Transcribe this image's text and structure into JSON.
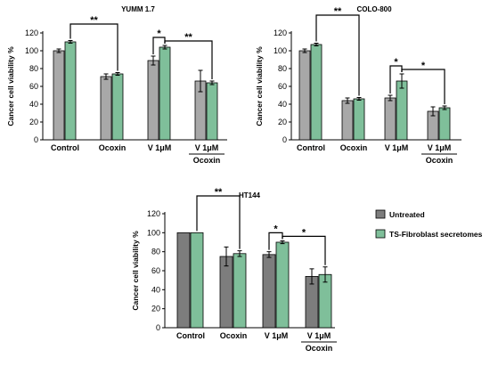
{
  "colors": {
    "untreated": "#a8a8a8",
    "untreated_dark": "#7d7d7d",
    "ts_fibroblast": "#7fbf9a",
    "axis": "#000000"
  },
  "legend": {
    "items": [
      {
        "label": "Untreated",
        "color_key": "untreated_dark"
      },
      {
        "label": "TS-Fibroblast secretomes",
        "color_key": "ts_fibroblast"
      }
    ]
  },
  "chart_data": [
    {
      "type": "bar",
      "title": "YUMM 1.7",
      "ylabel": "Cancer cell viability %",
      "ylim": [
        0,
        120
      ],
      "yticks": [
        0,
        20,
        40,
        60,
        80,
        100,
        120
      ],
      "categories": [
        "Control",
        "Ocoxin",
        "V 1μM",
        "V 1μM"
      ],
      "category_sublabels": [
        "",
        "",
        "",
        "Ocoxin"
      ],
      "series": [
        {
          "name": "Untreated",
          "values": [
            100,
            71,
            89,
            66
          ],
          "errors": [
            2,
            3,
            5,
            12
          ]
        },
        {
          "name": "TS-Fibroblast secretomes",
          "values": [
            110,
            74,
            104,
            64
          ],
          "errors": [
            1.5,
            1.5,
            2,
            2
          ]
        }
      ],
      "significance": [
        {
          "label": "**",
          "from": [
            0,
            1
          ],
          "to": [
            1,
            1
          ]
        },
        {
          "label": "*",
          "from": [
            2,
            0
          ],
          "to": [
            2,
            1
          ]
        },
        {
          "label": "**",
          "from": [
            2,
            1
          ],
          "to": [
            3,
            1
          ]
        }
      ]
    },
    {
      "type": "bar",
      "title": "COLO-800",
      "ylabel": "Cancer cell viability %",
      "ylim": [
        0,
        120
      ],
      "yticks": [
        0,
        20,
        40,
        60,
        80,
        100,
        120
      ],
      "categories": [
        "Control",
        "Ocoxin",
        "V 1μM",
        "V 1μM"
      ],
      "category_sublabels": [
        "",
        "",
        "",
        "Ocoxin"
      ],
      "series": [
        {
          "name": "Untreated",
          "values": [
            100,
            44,
            47,
            32
          ],
          "errors": [
            2,
            3,
            3,
            5
          ]
        },
        {
          "name": "TS-Fibroblast secretomes",
          "values": [
            107,
            46,
            66,
            36
          ],
          "errors": [
            1.5,
            1.5,
            8,
            2
          ]
        }
      ],
      "significance": [
        {
          "label": "**",
          "from": [
            0,
            1
          ],
          "to": [
            1,
            1
          ]
        },
        {
          "label": "*",
          "from": [
            2,
            0
          ],
          "to": [
            2,
            1
          ]
        },
        {
          "label": "*",
          "from": [
            2,
            1
          ],
          "to": [
            3,
            1
          ]
        }
      ]
    },
    {
      "type": "bar",
      "title": "HT144",
      "ylabel": "Cancer cell viability %",
      "ylim": [
        0,
        120
      ],
      "yticks": [
        0,
        20,
        40,
        60,
        80,
        100,
        120
      ],
      "categories": [
        "Control",
        "Ocoxin",
        "V 1μM",
        "V 1μM"
      ],
      "category_sublabels": [
        "",
        "",
        "",
        "Ocoxin"
      ],
      "series": [
        {
          "name": "Untreated",
          "values": [
            100,
            75,
            77,
            54
          ],
          "errors": [
            0,
            10,
            3,
            8
          ]
        },
        {
          "name": "TS-Fibroblast secretomes",
          "values": [
            100,
            78,
            90,
            56
          ],
          "errors": [
            0,
            3,
            1.5,
            8
          ]
        }
      ],
      "significance": [
        {
          "label": "**",
          "from": [
            0,
            1
          ],
          "to": [
            1,
            1
          ]
        },
        {
          "label": "*",
          "from": [
            2,
            0
          ],
          "to": [
            2,
            1
          ]
        },
        {
          "label": "*",
          "from": [
            2,
            1
          ],
          "to": [
            3,
            1
          ]
        }
      ]
    }
  ]
}
